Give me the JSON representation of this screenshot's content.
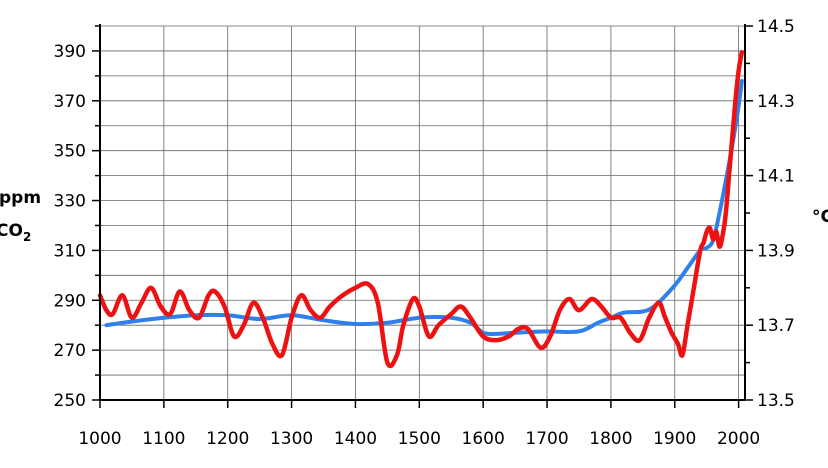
{
  "chart_data": {
    "type": "line",
    "xlabel": "",
    "xlim": [
      1000,
      2010
    ],
    "x_ticks": [
      1000,
      1100,
      1200,
      1300,
      1400,
      1500,
      1600,
      1700,
      1800,
      1900,
      2000
    ],
    "x_tick_labels": [
      "1000",
      "1100",
      "1200",
      "1300",
      "1400",
      "1500",
      "1600",
      "1700",
      "1800",
      "1900",
      "2000"
    ],
    "left_axis": {
      "label_line1": "ppm",
      "label_line2": "CO",
      "label_sub": "2",
      "ylim": [
        250,
        400
      ],
      "ticks": [
        250,
        270,
        290,
        310,
        330,
        350,
        370,
        390
      ],
      "tick_labels": [
        "250",
        "270",
        "290",
        "310",
        "330",
        "350",
        "370",
        "390"
      ]
    },
    "right_axis": {
      "label": "°C",
      "ylim": [
        13.5,
        14.5
      ],
      "ticks": [
        13.5,
        13.7,
        13.9,
        14.1,
        14.3,
        14.5
      ],
      "tick_labels": [
        "13.5",
        "13.7",
        "13.9",
        "14.1",
        "14.3",
        "14.5"
      ]
    },
    "grid": true,
    "legend": "none",
    "series": [
      {
        "axis": "left",
        "color": "#2f80ed",
        "x": [
          1010,
          1050,
          1100,
          1150,
          1200,
          1250,
          1300,
          1350,
          1400,
          1450,
          1500,
          1550,
          1580,
          1600,
          1620,
          1650,
          1700,
          1750,
          1780,
          1800,
          1820,
          1850,
          1870,
          1900,
          1920,
          1940,
          1950,
          1960,
          1970,
          1980,
          1990,
          2000,
          2005
        ],
        "values": [
          280,
          281.5,
          283,
          284,
          284,
          282.5,
          284,
          282,
          280.5,
          281,
          283,
          283,
          281,
          277,
          276.5,
          277,
          277.5,
          277.5,
          281,
          283,
          285,
          285.5,
          288,
          296,
          303,
          310,
          311,
          314,
          325,
          338,
          352,
          368,
          378
        ]
      },
      {
        "axis": "right",
        "color": "#ee1111",
        "x": [
          1000,
          1010,
          1020,
          1035,
          1050,
          1065,
          1080,
          1095,
          1110,
          1125,
          1140,
          1155,
          1170,
          1180,
          1195,
          1210,
          1225,
          1240,
          1255,
          1270,
          1285,
          1300,
          1315,
          1330,
          1345,
          1360,
          1380,
          1400,
          1420,
          1435,
          1450,
          1465,
          1475,
          1490,
          1500,
          1515,
          1530,
          1550,
          1565,
          1580,
          1600,
          1620,
          1640,
          1655,
          1670,
          1690,
          1705,
          1720,
          1735,
          1750,
          1770,
          1785,
          1800,
          1815,
          1830,
          1845,
          1860,
          1875,
          1885,
          1895,
          1905,
          1912,
          1920,
          1930,
          1940,
          1945,
          1950,
          1955,
          1960,
          1965,
          1970,
          1975,
          1980,
          1985,
          1990,
          1995,
          2000,
          2005
        ],
        "values": [
          13.78,
          13.74,
          13.73,
          13.78,
          13.72,
          13.76,
          13.8,
          13.75,
          13.73,
          13.79,
          13.74,
          13.72,
          13.78,
          13.79,
          13.75,
          13.67,
          13.7,
          13.76,
          13.72,
          13.65,
          13.62,
          13.72,
          13.78,
          13.74,
          13.72,
          13.75,
          13.78,
          13.8,
          13.81,
          13.76,
          13.6,
          13.62,
          13.7,
          13.77,
          13.75,
          13.67,
          13.7,
          13.73,
          13.75,
          13.72,
          13.67,
          13.66,
          13.67,
          13.69,
          13.69,
          13.64,
          13.67,
          13.74,
          13.77,
          13.74,
          13.77,
          13.75,
          13.72,
          13.72,
          13.68,
          13.66,
          13.72,
          13.76,
          13.72,
          13.68,
          13.65,
          13.62,
          13.7,
          13.8,
          13.9,
          13.92,
          13.95,
          13.96,
          13.93,
          13.95,
          13.91,
          13.94,
          14.0,
          14.1,
          14.2,
          14.3,
          14.38,
          14.43
        ]
      }
    ]
  }
}
